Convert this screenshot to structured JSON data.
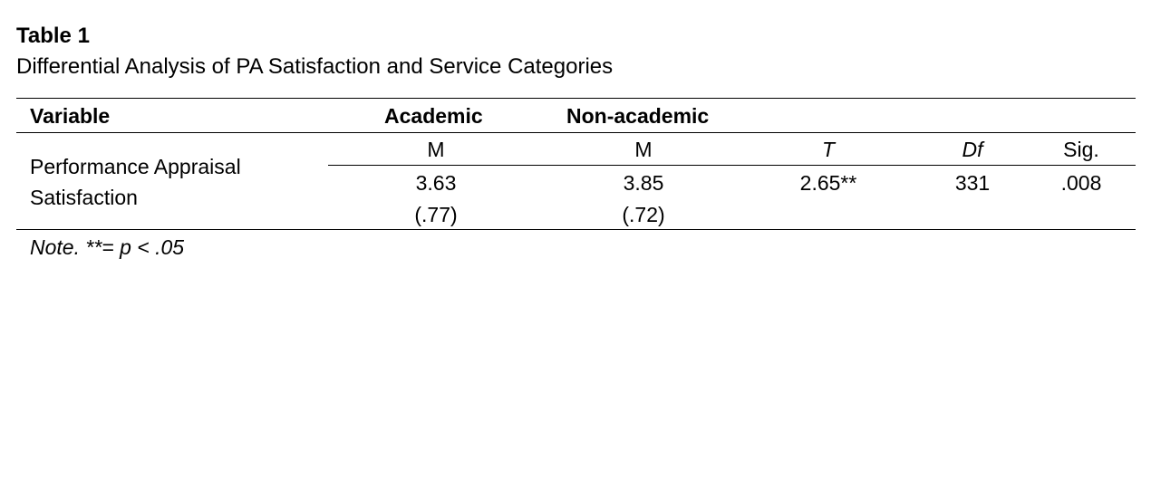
{
  "table": {
    "label": "Table 1",
    "caption": "Differential Analysis of PA Satisfaction and Service Categories",
    "headers": {
      "variable": "Variable",
      "academic": "Academic",
      "non_academic": "Non-academic"
    },
    "subheaders": {
      "academic_m": "M",
      "non_academic_m": "M",
      "t": "T",
      "df": "Df",
      "sig": "Sig."
    },
    "row": {
      "variable_line1": "Performance Appraisal",
      "variable_line2": "Satisfaction",
      "academic_mean": "3.63",
      "academic_sd": "(.77)",
      "non_academic_mean": "3.85",
      "non_academic_sd": "(.72)",
      "t_value": "2.65**",
      "df_value": "331",
      "sig_value": ".008"
    },
    "note": "Note.  **= p < .05"
  }
}
